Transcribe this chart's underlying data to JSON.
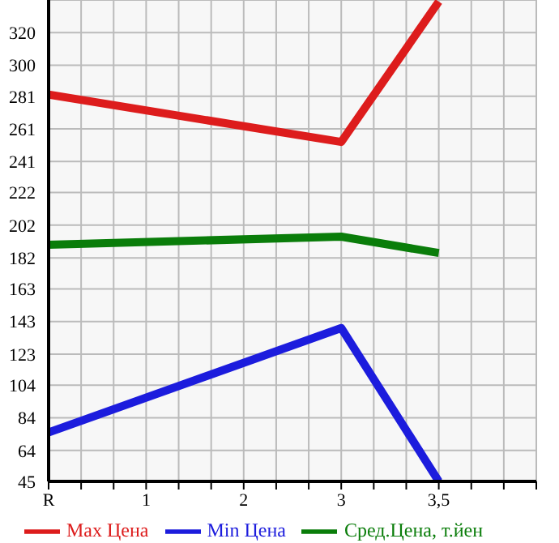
{
  "chart_data": {
    "type": "line",
    "categories": [
      "R",
      "1",
      "2",
      "3",
      "3,5"
    ],
    "series": [
      {
        "name": "Max Цена",
        "color": "#dd1c1c",
        "values": [
          282,
          null,
          null,
          253,
          339
        ]
      },
      {
        "name": "Min Цена",
        "color": "#1c1cdd",
        "values": [
          75,
          null,
          null,
          139,
          45
        ]
      },
      {
        "name": "Сред.Цена, т.йен",
        "color": "#0a7d0a",
        "values": [
          190,
          null,
          null,
          195,
          185
        ]
      }
    ],
    "ylim": [
      45,
      340
    ],
    "yticks": [
      45,
      64,
      84,
      104,
      123,
      143,
      163,
      182,
      202,
      222,
      241,
      261,
      281,
      300,
      320
    ],
    "grid": true,
    "legend": "bottom",
    "marker": "none",
    "line_style": "solid"
  }
}
